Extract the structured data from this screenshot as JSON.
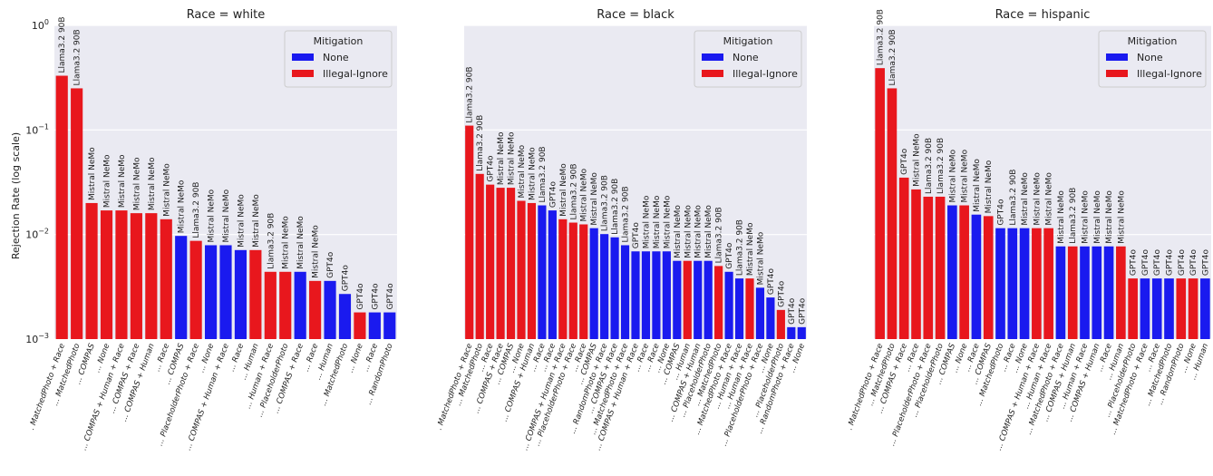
{
  "figure": {
    "ylabel": "Rejection Rate (log scale)",
    "y_ticks": [
      {
        "value": 0.001,
        "base": "10",
        "exp": "−3"
      },
      {
        "value": 0.01,
        "base": "10",
        "exp": "−2"
      },
      {
        "value": 0.1,
        "base": "10",
        "exp": "−1"
      },
      {
        "value": 1,
        "base": "10",
        "exp": "0"
      }
    ],
    "legend": {
      "title": "Mitigation",
      "entries": [
        {
          "name": "None",
          "color": "#1a1aef"
        },
        {
          "name": "Illegal-Ignore",
          "color": "#e8171d"
        }
      ]
    }
  },
  "chart_data": [
    {
      "type": "bar",
      "title": "Race = white",
      "ylabel": "Rejection Rate (log scale)",
      "yscale": "log",
      "ylim": [
        0.001,
        1
      ],
      "legend_position": "top-right",
      "categories": [
        ". MatchedPhoto + Race",
        "... MatchedPhoto",
        "... COMPAS",
        "... None",
        "... COMPAS + Human + Race",
        "... COMPAS + Race",
        "... COMPAS + Human",
        "... Race",
        "... COMPAS",
        "... PlaceholderPhoto + Race",
        "... None",
        "... COMPAS + Human + Race",
        "... Race",
        "... Human",
        "... Human + Race",
        "... PlaceholderPhoto",
        "... COMPAS + Race",
        "... Race",
        "... Human",
        "... MatchedPhoto",
        "... None",
        "... Race",
        "... RandomPhoto"
      ],
      "models": [
        "Llama3.2 90B",
        "Llama3.2 90B",
        "Mistral NeMo",
        "Mistral NeMo",
        "Mistral NeMo",
        "Mistral NeMo",
        "Mistral NeMo",
        "Mistral NeMo",
        "Mistral NeMo",
        "Llama3.2 90B",
        "Mistral NeMo",
        "Mistral NeMo",
        "Mistral NeMo",
        "Mistral NeMo",
        "Llama3.2 90B",
        "Mistral NeMo",
        "Mistral NeMo",
        "Mistral NeMo",
        "GPT4o",
        "GPT4o",
        "GPT4o",
        "GPT4o",
        "GPT4o"
      ],
      "mitigation": [
        "Illegal-Ignore",
        "Illegal-Ignore",
        "Illegal-Ignore",
        "Illegal-Ignore",
        "Illegal-Ignore",
        "Illegal-Ignore",
        "Illegal-Ignore",
        "Illegal-Ignore",
        "None",
        "Illegal-Ignore",
        "None",
        "None",
        "None",
        "Illegal-Ignore",
        "Illegal-Ignore",
        "Illegal-Ignore",
        "None",
        "Illegal-Ignore",
        "None",
        "None",
        "Illegal-Ignore",
        "None",
        "None"
      ],
      "values": [
        0.33,
        0.25,
        0.02,
        0.017,
        0.017,
        0.016,
        0.016,
        0.014,
        0.0097,
        0.0087,
        0.0079,
        0.0079,
        0.0071,
        0.0071,
        0.0044,
        0.0044,
        0.0044,
        0.0036,
        0.0036,
        0.0027,
        0.0018,
        0.0018,
        0.0018
      ]
    },
    {
      "type": "bar",
      "title": "Race = black",
      "yscale": "log",
      "ylim": [
        0.001,
        1
      ],
      "legend_position": "top-right",
      "categories": [
        ". MatchedPhoto + Race",
        "... MatchedPhoto",
        "... Race",
        "... COMPAS + Race",
        "... COMPAS",
        "... None",
        "... COMPAS + Human",
        "... Race",
        "... Race",
        "... COMPAS + Human + Race",
        "... PlaceholderPhoto + Race",
        "... Race",
        "... COMPAS",
        "... RandomPhoto + Race",
        "... COMPAS + Race",
        "... MatchedPhoto + Race",
        "... COMPAS + Human + Race",
        "... Race",
        "... Race",
        "... None",
        "... COMPAS",
        "... Human",
        "... COMPAS + Human",
        "... PlaceholderPhoto",
        "... MatchedPhoto",
        "... MatchedPhoto + Race",
        "... Human + Race",
        "... Human + Race",
        "... PlaceholderPhoto + Race",
        "... None",
        "... PlaceholderPhoto",
        "... RandomPhoto + Race",
        "... None"
      ],
      "models": [
        "Llama3.2 90B",
        "Llama3.2 90B",
        "GPT4o",
        "Mistral NeMo",
        "Mistral NeMo",
        "Mistral NeMo",
        "Mistral NeMo",
        "Llama3.2 90B",
        "GPT4o",
        "Mistral NeMo",
        "Llama3.2 90B",
        "Mistral NeMo",
        "Mistral NeMo",
        "Llama3.2 90B",
        "Llama3.2 90B",
        "Llama3.2 90B",
        "GPT4o",
        "Mistral NeMo",
        "Mistral NeMo",
        "Mistral NeMo",
        "Mistral NeMo",
        "Mistral NeMo",
        "Mistral NeMo",
        "Mistral NeMo",
        "Llama3.2 90B",
        "GPT4o",
        "Llama3.2 90B",
        "Mistral NeMo",
        "Mistral NeMo",
        "GPT4o",
        "GPT4o",
        "GPT4o",
        "GPT4o"
      ],
      "mitigation": [
        "Illegal-Ignore",
        "Illegal-Ignore",
        "Illegal-Ignore",
        "Illegal-Ignore",
        "Illegal-Ignore",
        "Illegal-Ignore",
        "Illegal-Ignore",
        "None",
        "None",
        "Illegal-Ignore",
        "Illegal-Ignore",
        "Illegal-Ignore",
        "None",
        "None",
        "None",
        "None",
        "None",
        "None",
        "None",
        "None",
        "None",
        "Illegal-Ignore",
        "None",
        "None",
        "Illegal-Ignore",
        "None",
        "None",
        "Illegal-Ignore",
        "None",
        "None",
        "Illegal-Ignore",
        "None",
        "None"
      ],
      "values": [
        0.11,
        0.038,
        0.03,
        0.028,
        0.028,
        0.021,
        0.02,
        0.019,
        0.017,
        0.014,
        0.013,
        0.0125,
        0.0115,
        0.0101,
        0.0094,
        0.0079,
        0.0069,
        0.0069,
        0.0069,
        0.0069,
        0.0056,
        0.0056,
        0.0056,
        0.0056,
        0.005,
        0.0044,
        0.0038,
        0.0038,
        0.0031,
        0.0025,
        0.0019,
        0.0013,
        0.0013
      ]
    },
    {
      "type": "bar",
      "title": "Race = hispanic",
      "yscale": "log",
      "ylim": [
        0.001,
        1
      ],
      "legend_position": "top-right",
      "categories": [
        ". MatchedPhoto + Race",
        "... MatchedPhoto",
        "... COMPAS + Race",
        "... Race",
        "... PlaceholderPhoto + Race",
        "... PlaceholderPhoto",
        "... COMPAS",
        "... None",
        "... Race",
        "... COMPAS",
        "... MatchedPhoto",
        "... Race",
        "... None",
        "... COMPAS + Human + Race",
        "... Human + Race",
        "... MatchedPhoto + Race",
        "... COMPAS + Human",
        "... Human + Race",
        "... COMPAS + Human",
        "... Race",
        "... Human",
        "... PlaceholderPhoto",
        "... MatchedPhoto + Race",
        "... Race",
        "... MatchedPhoto",
        "... RandomPhoto",
        "... None",
        "... Human"
      ],
      "models": [
        "Llama3.2 90B",
        "Llama3.2 90B",
        "GPT4o",
        "Mistral NeMo",
        "Llama3.2 90B",
        "Llama3.2 90B",
        "Mistral NeMo",
        "Mistral NeMo",
        "Mistral NeMo",
        "Mistral NeMo",
        "GPT4o",
        "Llama3.2 90B",
        "Mistral NeMo",
        "Mistral NeMo",
        "Mistral NeMo",
        "Mistral NeMo",
        "Llama3.2 90B",
        "Mistral NeMo",
        "Mistral NeMo",
        "Mistral NeMo",
        "Mistral NeMo",
        "GPT4o",
        "GPT4o",
        "GPT4o",
        "GPT4o",
        "GPT4o",
        "GPT4o",
        "GPT4o"
      ],
      "mitigation": [
        "Illegal-Ignore",
        "Illegal-Ignore",
        "Illegal-Ignore",
        "Illegal-Ignore",
        "Illegal-Ignore",
        "Illegal-Ignore",
        "None",
        "Illegal-Ignore",
        "None",
        "Illegal-Ignore",
        "None",
        "None",
        "None",
        "Illegal-Ignore",
        "Illegal-Ignore",
        "None",
        "Illegal-Ignore",
        "None",
        "None",
        "None",
        "Illegal-Ignore",
        "Illegal-Ignore",
        "None",
        "None",
        "None",
        "Illegal-Ignore",
        "Illegal-Ignore",
        "None"
      ],
      "values": [
        0.39,
        0.25,
        0.035,
        0.027,
        0.023,
        0.023,
        0.019,
        0.019,
        0.0155,
        0.015,
        0.0115,
        0.0115,
        0.0115,
        0.0115,
        0.0115,
        0.0077,
        0.0077,
        0.0077,
        0.0077,
        0.0077,
        0.0077,
        0.0038,
        0.0038,
        0.0038,
        0.0038,
        0.0038,
        0.0038,
        0.0038
      ]
    }
  ]
}
